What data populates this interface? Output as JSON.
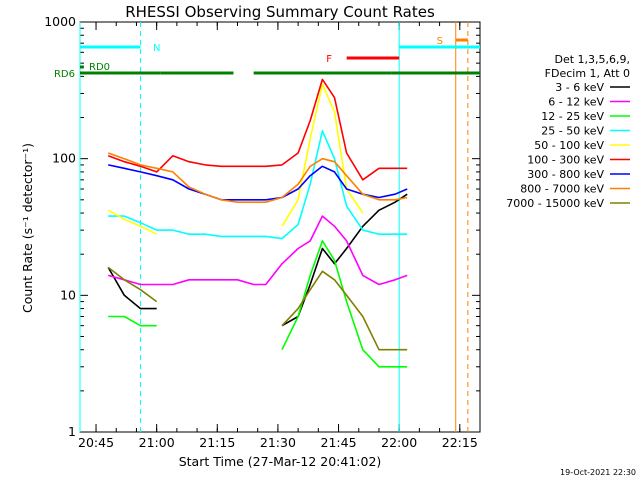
{
  "page": {
    "title": "RHESSI Observing Summary Count Rates",
    "footer_date": "19-Oct-2021 22:30"
  },
  "chart_data": {
    "type": "line",
    "title": "RHESSI Observing Summary Count Rates",
    "xlabel": "Start Time (27-Mar-12 20:41:02)",
    "ylabel": "Count Rate (s⁻¹ detector⁻¹)",
    "yscale": "log",
    "ylim": [
      1,
      1000
    ],
    "xlim": [
      "20:41:02",
      "22:20"
    ],
    "x_ticks": [
      "20:45",
      "21:00",
      "21:15",
      "21:30",
      "21:45",
      "22:00",
      "22:15"
    ],
    "y_ticks": [
      "1",
      "10",
      "100",
      "1000"
    ],
    "legend_header": [
      "Det 1,3,5,6,9,",
      "FDecim 1, Att 0"
    ],
    "legend_position": "right",
    "x": [
      "20:48",
      "20:52",
      "20:56",
      "21:00",
      "21:04",
      "21:08",
      "21:12",
      "21:16",
      "21:20",
      "21:24",
      "21:27",
      "21:31",
      "21:35",
      "21:38",
      "21:41",
      "21:44",
      "21:47",
      "21:51",
      "21:55",
      "21:59",
      "22:02"
    ],
    "series": [
      {
        "name": "3 - 6 keV",
        "color": "#000000",
        "values": [
          16,
          10,
          8,
          8,
          null,
          null,
          null,
          null,
          null,
          null,
          null,
          6,
          7,
          12,
          22,
          17,
          22,
          32,
          42,
          48,
          55
        ]
      },
      {
        "name": "6 - 12 keV",
        "color": "#ff00ff",
        "values": [
          14,
          13,
          12,
          12,
          12,
          13,
          13,
          13,
          13,
          12,
          12,
          17,
          22,
          25,
          38,
          32,
          25,
          14,
          12,
          13,
          14
        ]
      },
      {
        "name": "12 - 25 keV",
        "color": "#00ff00",
        "values": [
          7,
          7,
          6,
          6,
          null,
          null,
          null,
          null,
          null,
          null,
          null,
          4,
          7,
          14,
          25,
          18,
          9,
          4,
          3,
          3,
          3
        ]
      },
      {
        "name": "25 - 50 keV",
        "color": "#00ffff",
        "values": [
          38,
          38,
          34,
          30,
          30,
          28,
          28,
          27,
          27,
          27,
          27,
          26,
          33,
          65,
          160,
          100,
          45,
          30,
          28,
          28,
          28
        ]
      },
      {
        "name": "50 - 100 keV",
        "color": "#ffff00",
        "values": [
          42,
          36,
          32,
          28,
          null,
          null,
          null,
          null,
          null,
          null,
          null,
          32,
          50,
          140,
          350,
          220,
          60,
          40,
          null,
          null,
          null
        ]
      },
      {
        "name": "100 - 300 keV",
        "color": "#ff0000",
        "values": [
          105,
          95,
          88,
          80,
          105,
          95,
          90,
          88,
          88,
          88,
          88,
          90,
          110,
          190,
          380,
          280,
          110,
          70,
          85,
          85,
          85
        ]
      },
      {
        "name": "300 - 800 keV",
        "color": "#0000ff",
        "values": [
          90,
          85,
          80,
          75,
          70,
          60,
          55,
          50,
          50,
          50,
          50,
          52,
          60,
          75,
          88,
          80,
          60,
          55,
          52,
          55,
          60
        ]
      },
      {
        "name": "800 - 7000 keV",
        "color": "#ff8000",
        "values": [
          110,
          100,
          90,
          85,
          80,
          62,
          55,
          50,
          48,
          48,
          48,
          52,
          65,
          88,
          100,
          95,
          75,
          55,
          50,
          50,
          52
        ]
      },
      {
        "name": "7000 - 15000 keV",
        "color": "#808000",
        "values": [
          16,
          13,
          11,
          9,
          null,
          null,
          null,
          null,
          null,
          null,
          null,
          6,
          8,
          11,
          15,
          13,
          10,
          7,
          4,
          4,
          4
        ]
      }
    ],
    "flags": [
      {
        "name": "RD6",
        "color": "#008000",
        "spans": [
          [
            "20:41:02",
            "21:01"
          ],
          [
            "21:01",
            "21:19"
          ],
          [
            "21:24",
            "21:58"
          ],
          [
            "21:58",
            "22:20"
          ]
        ]
      },
      {
        "name": "RD0",
        "color": "#008000",
        "spans": [
          [
            "20:41:02",
            "20:42"
          ]
        ]
      },
      {
        "name": "N",
        "color": "#00ffff",
        "spans": [
          [
            "20:41:02",
            "20:56"
          ],
          [
            "22:00",
            "22:20"
          ]
        ]
      },
      {
        "name": "F",
        "color": "#ff0000",
        "spans": [
          [
            "21:47",
            "22:00"
          ]
        ]
      },
      {
        "name": "S",
        "color": "#ff8000",
        "spans": [
          [
            "22:14",
            "22:17"
          ]
        ]
      }
    ],
    "vertical_markers": [
      {
        "color": "#00ffff",
        "style": "solid",
        "x": "20:41:02"
      },
      {
        "color": "#00ffff",
        "style": "dashed",
        "x": "20:56"
      },
      {
        "color": "#00ffff",
        "style": "solid",
        "x": "22:00"
      },
      {
        "color": "#ff8000",
        "style": "solid",
        "x": "22:14"
      },
      {
        "color": "#ff8000",
        "style": "dashed",
        "x": "22:17"
      }
    ]
  }
}
